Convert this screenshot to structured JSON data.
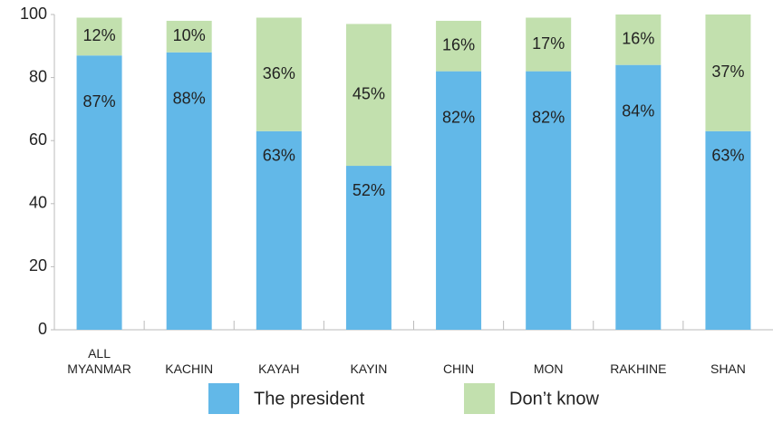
{
  "chart_data": {
    "type": "stacked_bar",
    "categories": [
      "ALL MYANMAR",
      "KACHIN",
      "KAYAH",
      "KAYIN",
      "CHIN",
      "MON",
      "RAKHINE",
      "SHAN"
    ],
    "series": [
      {
        "name": "The president",
        "color": "#62b8e8",
        "values": [
          87,
          88,
          63,
          52,
          82,
          82,
          84,
          63
        ],
        "value_labels": [
          "87%",
          "88%",
          "63%",
          "52%",
          "82%",
          "82%",
          "84%",
          "63%"
        ]
      },
      {
        "name": "Don’t know",
        "color": "#c2e0ae",
        "values": [
          12,
          10,
          36,
          45,
          16,
          17,
          16,
          37
        ],
        "value_labels": [
          "12%",
          "10%",
          "36%",
          "45%",
          "16%",
          "17%",
          "16%",
          "37%"
        ]
      }
    ],
    "ylim": [
      0,
      100
    ],
    "yticks": [
      0,
      20,
      40,
      60,
      80,
      100
    ],
    "grid": false
  }
}
